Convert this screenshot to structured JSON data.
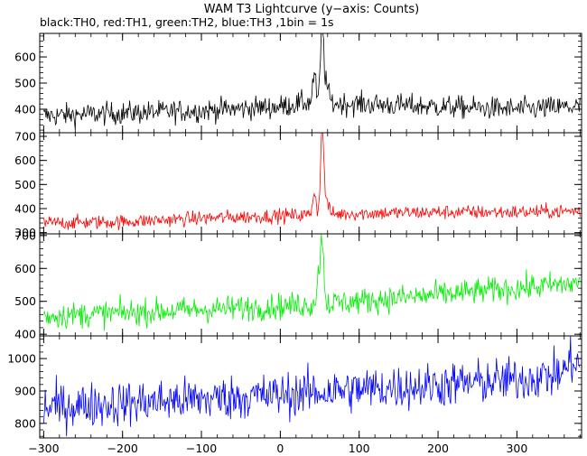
{
  "chart_data": {
    "type": "line",
    "title": "WAM T3 Lightcurve (y−axis: Counts)",
    "subtitle": "black:TH0, red:TH1, green:TH2, blue:TH3 ,1bin = 1s",
    "xlabel": "",
    "ylabel": "",
    "xlim": [
      -305,
      382
    ],
    "x_ticks": [
      -300,
      -200,
      -100,
      0,
      100,
      200,
      300
    ],
    "bin_seconds": 1,
    "grid": false,
    "panels": [
      {
        "name": "TH0",
        "color": "#000000",
        "ylim": [
          310,
          690
        ],
        "y_ticks": [
          400,
          500,
          600
        ],
        "baseline": [
          [
            -300,
            375
          ],
          [
            -200,
            385
          ],
          [
            -100,
            395
          ],
          [
            0,
            410
          ],
          [
            30,
            425
          ],
          [
            100,
            420
          ],
          [
            200,
            410
          ],
          [
            300,
            400
          ],
          [
            380,
            410
          ]
        ],
        "noise": 22,
        "peaks": [
          {
            "x": 43,
            "height": 110,
            "width": 2
          },
          {
            "x": 53,
            "height": 285,
            "width": 2
          },
          {
            "x": 58,
            "height": 70,
            "width": 3
          }
        ]
      },
      {
        "name": "TH1",
        "color": "#ff0000",
        "ylim": [
          295,
          715
        ],
        "y_ticks": [
          300,
          400,
          500,
          600,
          700
        ],
        "baseline": [
          [
            -300,
            340
          ],
          [
            -200,
            345
          ],
          [
            -100,
            360
          ],
          [
            0,
            370
          ],
          [
            100,
            380
          ],
          [
            200,
            385
          ],
          [
            300,
            385
          ],
          [
            380,
            390
          ]
        ],
        "noise": 15,
        "peaks": [
          {
            "x": 43,
            "height": 100,
            "width": 2
          },
          {
            "x": 53,
            "height": 350,
            "width": 2
          },
          {
            "x": 58,
            "height": 60,
            "width": 3
          }
        ]
      },
      {
        "name": "TH2",
        "color": "#00ee00",
        "ylim": [
          395,
          705
        ],
        "y_ticks": [
          400,
          500,
          600,
          700
        ],
        "baseline": [
          [
            -300,
            455
          ],
          [
            -200,
            465
          ],
          [
            -100,
            475
          ],
          [
            0,
            485
          ],
          [
            100,
            500
          ],
          [
            200,
            520
          ],
          [
            300,
            540
          ],
          [
            380,
            555
          ]
        ],
        "noise": 20,
        "peaks": [
          {
            "x": 48,
            "height": 80,
            "width": 2
          },
          {
            "x": 53,
            "height": 210,
            "width": 2
          }
        ]
      },
      {
        "name": "TH3",
        "color": "#0000ff",
        "ylim": [
          755,
          1070
        ],
        "y_ticks": [
          800,
          900,
          1000
        ],
        "baseline": [
          [
            -300,
            850
          ],
          [
            -200,
            862
          ],
          [
            -100,
            875
          ],
          [
            0,
            888
          ],
          [
            100,
            905
          ],
          [
            200,
            918
          ],
          [
            300,
            935
          ],
          [
            380,
            960
          ]
        ],
        "noise": 35,
        "peaks": [
          {
            "x": 370,
            "height": 35,
            "width": 6
          }
        ]
      }
    ]
  }
}
